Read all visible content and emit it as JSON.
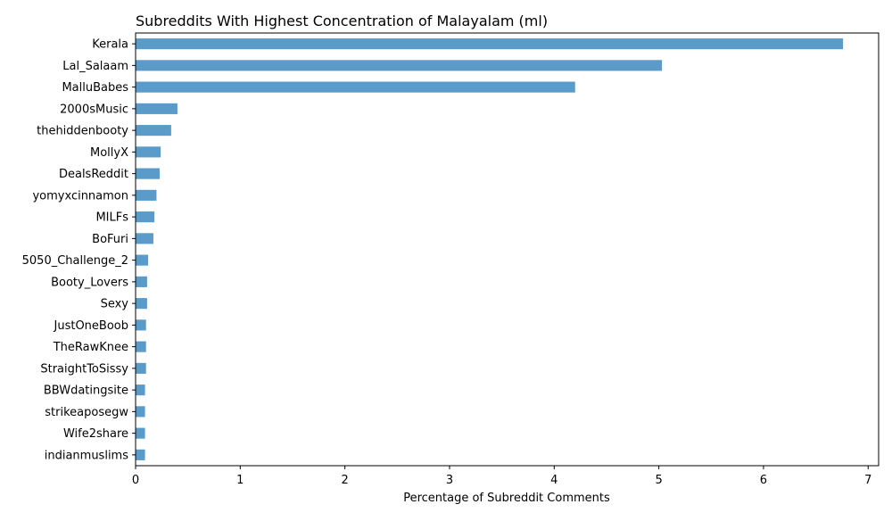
{
  "chart_data": {
    "type": "bar",
    "orientation": "horizontal",
    "title": "Subreddits With Highest Concentration of Malayalam (ml)",
    "xlabel": "Percentage of Subreddit Comments",
    "ylabel": "",
    "xlim": [
      0,
      7.1
    ],
    "xticks": [
      0,
      1,
      2,
      3,
      4,
      5,
      6,
      7
    ],
    "grid": false,
    "bar_color": "#5a9bc9",
    "categories": [
      "Kerala",
      "Lal_Salaam",
      "MalluBabes",
      "2000sMusic",
      "thehiddenbooty",
      "MollyX",
      "DealsReddit",
      "yomyxcinnamon",
      "MILFs",
      "BoFuri",
      "5050_Challenge_2",
      "Booty_Lovers",
      "Sexy",
      "JustOneBoob",
      "TheRawKnee",
      "StraightToSissy",
      "BBWdatingsite",
      "strikeaposegw",
      "Wife2share",
      "indianmuslims"
    ],
    "values": [
      6.76,
      5.03,
      4.2,
      0.4,
      0.34,
      0.24,
      0.23,
      0.2,
      0.18,
      0.17,
      0.12,
      0.11,
      0.11,
      0.1,
      0.1,
      0.1,
      0.09,
      0.09,
      0.09,
      0.09
    ]
  }
}
